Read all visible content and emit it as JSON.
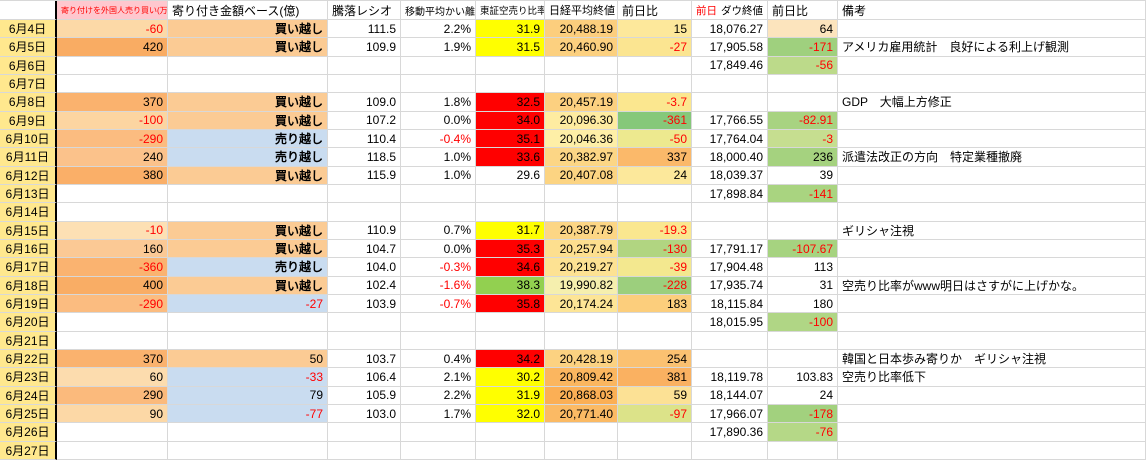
{
  "colors": {
    "gridline": "#d8d8d8",
    "date_column_bg": "#ffe88e",
    "negative_text": "#ff0000",
    "header_b_bg": "#ffc7ce",
    "header_red_text": "#ff0000",
    "buy_fill": "#fbcb94",
    "sell_fill": "#c9dcf0",
    "yellow_flag": "#ffff00",
    "red_flag": "#ff0000",
    "green_flag": "#92d050"
  },
  "headers": {
    "a": "",
    "b": "寄り付けを外国人売り買い(万株)",
    "c": "寄り付き金額ベース(億)",
    "d": "騰落レシオ",
    "e": "移動平均かい離",
    "f": "東証空売り比率",
    "g": "日経平均終値",
    "h": "前日比",
    "i_prefix": "前日",
    "i": "ダウ終値",
    "j": "前日比",
    "k": "備考"
  },
  "rows": [
    {
      "date": "6月4日",
      "b": {
        "t": "-60",
        "bg": "#FCD9A7"
      },
      "c": {
        "t": "買い越し",
        "bg": "#FBCB94",
        "bold": true
      },
      "d": {
        "t": "111.5"
      },
      "e": {
        "t": "2.2%"
      },
      "f": {
        "t": "31.9",
        "bg": "#FFFF00"
      },
      "g": {
        "t": "20,488.19",
        "bg": "#FCCE7D"
      },
      "h": {
        "t": "15",
        "bg": "#FDE89B"
      },
      "i": {
        "t": "18,076.27"
      },
      "j": {
        "t": "64",
        "bg": "#FCE4BD"
      },
      "k": {
        "t": ""
      }
    },
    {
      "date": "6月5日",
      "b": {
        "t": "420",
        "bg": "#F9AC63"
      },
      "c": {
        "t": "買い越し",
        "bg": "#FBCB94",
        "bold": true
      },
      "d": {
        "t": "109.9"
      },
      "e": {
        "t": "1.9%"
      },
      "f": {
        "t": "31.5",
        "bg": "#FFFF00"
      },
      "g": {
        "t": "20,460.90",
        "bg": "#FCD07F"
      },
      "h": {
        "t": "-27",
        "bg": "#FBE591"
      },
      "i": {
        "t": "17,905.58"
      },
      "j": {
        "t": "-171",
        "bg": "#9FD07E"
      },
      "k": {
        "t": "アメリカ雇用統計　良好による利上げ観測"
      }
    },
    {
      "date": "6月6日",
      "i": {
        "t": "17,849.46"
      },
      "j": {
        "t": "-56",
        "bg": "#BCDA8A"
      }
    },
    {
      "date": "6月7日"
    },
    {
      "date": "6月8日",
      "b": {
        "t": "370",
        "bg": "#FAB26E"
      },
      "c": {
        "t": "買い越し",
        "bg": "#FBCB94",
        "bold": true
      },
      "d": {
        "t": "109.0"
      },
      "e": {
        "t": "1.8%"
      },
      "f": {
        "t": "32.5",
        "bg": "#FF0000"
      },
      "g": {
        "t": "20,457.19",
        "bg": "#FCD080"
      },
      "h": {
        "t": "-3.7",
        "bg": "#FBE78F"
      },
      "k": {
        "t": "GDP　大幅上方修正"
      }
    },
    {
      "date": "6月9日",
      "b": {
        "t": "-100",
        "bg": "#FCD5A1"
      },
      "c": {
        "t": "買い越し",
        "bg": "#FBCB94",
        "bold": true
      },
      "d": {
        "t": "107.2"
      },
      "e": {
        "t": "0.0%"
      },
      "f": {
        "t": "34.0",
        "bg": "#FF0000"
      },
      "g": {
        "t": "20,096.30",
        "bg": "#FEECA1"
      },
      "h": {
        "t": "-361",
        "bg": "#86C87A"
      },
      "i": {
        "t": "17,766.55"
      },
      "j": {
        "t": "-82.91",
        "bg": "#A8D381"
      }
    },
    {
      "date": "6月10日",
      "b": {
        "t": "-290",
        "bg": "#FBBC80"
      },
      "c": {
        "t": "売り越し",
        "bg": "#C9DCF0",
        "bold": true
      },
      "d": {
        "t": "110.4"
      },
      "e": {
        "t": "-0.4%"
      },
      "f": {
        "t": "35.1",
        "bg": "#FF0000"
      },
      "g": {
        "t": "20,046.36",
        "bg": "#FEEFA7"
      },
      "h": {
        "t": "-50",
        "bg": "#EDE98F"
      },
      "i": {
        "t": "17,764.04"
      },
      "j": {
        "t": "-3",
        "bg": "#C6DE90"
      }
    },
    {
      "date": "6月11日",
      "b": {
        "t": "240",
        "bg": "#FBC28B"
      },
      "c": {
        "t": "売り越し",
        "bg": "#C9DCF0",
        "bold": true
      },
      "d": {
        "t": "118.5"
      },
      "e": {
        "t": "1.0%"
      },
      "f": {
        "t": "33.6",
        "bg": "#FF0000"
      },
      "g": {
        "t": "20,382.97",
        "bg": "#FCD685"
      },
      "h": {
        "t": "337",
        "bg": "#FBB96A"
      },
      "i": {
        "t": "18,000.40"
      },
      "j": {
        "t": "236",
        "bg": "#A5D27F"
      },
      "k": {
        "t": "派遣法改正の方向　特定業種撤廃"
      }
    },
    {
      "date": "6月12日",
      "b": {
        "t": "380",
        "bg": "#FAAF68"
      },
      "c": {
        "t": "買い越し",
        "bg": "#FBCB94",
        "bold": true
      },
      "d": {
        "t": "115.9"
      },
      "e": {
        "t": "1.0%"
      },
      "f": {
        "t": "29.6"
      },
      "g": {
        "t": "20,407.08",
        "bg": "#FCD482"
      },
      "h": {
        "t": "24",
        "bg": "#FCE89B"
      },
      "i": {
        "t": "18,039.37"
      },
      "j": {
        "t": "39"
      }
    },
    {
      "date": "6月13日",
      "i": {
        "t": "17,898.84"
      },
      "j": {
        "t": "-141",
        "bg": "#A9D480"
      }
    },
    {
      "date": "6月14日"
    },
    {
      "date": "6月15日",
      "b": {
        "t": "-10",
        "bg": "#FDE0B4"
      },
      "c": {
        "t": "買い越し",
        "bg": "#FBCB94",
        "bold": true
      },
      "d": {
        "t": "110.9"
      },
      "e": {
        "t": "0.7%"
      },
      "f": {
        "t": "31.7",
        "bg": "#FFFF00"
      },
      "g": {
        "t": "20,387.79",
        "bg": "#FCD685"
      },
      "h": {
        "t": "-19.3",
        "bg": "#FAE78F"
      },
      "k": {
        "t": "ギリシャ注視"
      }
    },
    {
      "date": "6月16日",
      "b": {
        "t": "160",
        "bg": "#FBC995"
      },
      "c": {
        "t": "買い越し",
        "bg": "#FBCB94",
        "bold": true
      },
      "d": {
        "t": "104.7"
      },
      "e": {
        "t": "0.0%"
      },
      "f": {
        "t": "35.3",
        "bg": "#FF0000"
      },
      "g": {
        "t": "20,257.94",
        "bg": "#FDDF8F"
      },
      "h": {
        "t": "-130",
        "bg": "#B1D581"
      },
      "i": {
        "t": "17,791.17"
      },
      "j": {
        "t": "-107.67",
        "bg": "#A6D380"
      }
    },
    {
      "date": "6月17日",
      "b": {
        "t": "-360",
        "bg": "#FAB370"
      },
      "c": {
        "t": "売り越し",
        "bg": "#C9DCF0",
        "bold": true
      },
      "d": {
        "t": "104.0"
      },
      "e": {
        "t": "-0.3%"
      },
      "f": {
        "t": "34.6",
        "bg": "#FF0000"
      },
      "g": {
        "t": "20,219.27",
        "bg": "#FDE293"
      },
      "h": {
        "t": "-39",
        "bg": "#F3E88F"
      },
      "i": {
        "t": "17,904.48"
      },
      "j": {
        "t": "113"
      }
    },
    {
      "date": "6月18日",
      "b": {
        "t": "400",
        "bg": "#F9AD65"
      },
      "c": {
        "t": "買い越し",
        "bg": "#FBCB94",
        "bold": true
      },
      "d": {
        "t": "102.4"
      },
      "e": {
        "t": "-1.6%"
      },
      "f": {
        "t": "38.3",
        "bg": "#92D050"
      },
      "g": {
        "t": "19,990.82",
        "bg": "#F5EFAE"
      },
      "h": {
        "t": "-228",
        "bg": "#9CCF7D"
      },
      "i": {
        "t": "17,935.74"
      },
      "j": {
        "t": "31"
      },
      "k": {
        "t": "空売り比率がwww明日はさすがに上げかな。"
      }
    },
    {
      "date": "6月19日",
      "b": {
        "t": "-290",
        "bg": "#FBBC80"
      },
      "c": {
        "t": "-27",
        "bg": "#C9DCF0"
      },
      "d": {
        "t": "103.9"
      },
      "e": {
        "t": "-0.7%"
      },
      "f": {
        "t": "35.8",
        "bg": "#FF0000"
      },
      "g": {
        "t": "20,174.24",
        "bg": "#FDE596"
      },
      "h": {
        "t": "183",
        "bg": "#FCCE7C"
      },
      "i": {
        "t": "18,115.84"
      },
      "j": {
        "t": "180"
      }
    },
    {
      "date": "6月20日",
      "i": {
        "t": "18,015.95"
      },
      "j": {
        "t": "-100",
        "bg": "#B0D685"
      }
    },
    {
      "date": "6月21日"
    },
    {
      "date": "6月22日",
      "b": {
        "t": "370",
        "bg": "#FAB26E"
      },
      "c": {
        "t": "50",
        "bg": "#FBCB94"
      },
      "d": {
        "t": "103.7"
      },
      "e": {
        "t": "0.4%"
      },
      "f": {
        "t": "34.2",
        "bg": "#FF0000"
      },
      "g": {
        "t": "20,428.19",
        "bg": "#FCD281"
      },
      "h": {
        "t": "254",
        "bg": "#FBC171"
      },
      "k": {
        "t": "韓国と日本歩み寄りか　ギリシャ注視"
      }
    },
    {
      "date": "6月23日",
      "b": {
        "t": "60",
        "bg": "#FCDCAE"
      },
      "c": {
        "t": "-33",
        "bg": "#C9DCF0"
      },
      "d": {
        "t": "106.4"
      },
      "e": {
        "t": "2.1%"
      },
      "f": {
        "t": "30.2",
        "bg": "#FFFF00"
      },
      "g": {
        "t": "20,809.42",
        "bg": "#FBB65F"
      },
      "h": {
        "t": "381",
        "bg": "#FAB161"
      },
      "i": {
        "t": "18,119.78"
      },
      "j": {
        "t": "103.83"
      },
      "k": {
        "t": "空売り比率低下"
      }
    },
    {
      "date": "6月24日",
      "b": {
        "t": "290",
        "bg": "#FBBA7C"
      },
      "c": {
        "t": "79",
        "bg": "#C9DCF0"
      },
      "d": {
        "t": "105.9"
      },
      "e": {
        "t": "2.2%"
      },
      "f": {
        "t": "31.9",
        "bg": "#FFFF00"
      },
      "g": {
        "t": "20,868.03",
        "bg": "#FBAF55"
      },
      "h": {
        "t": "59",
        "bg": "#FCE195"
      },
      "i": {
        "t": "18,144.07"
      },
      "j": {
        "t": "24"
      }
    },
    {
      "date": "6月25日",
      "b": {
        "t": "90",
        "bg": "#FCD8A6"
      },
      "c": {
        "t": "-77",
        "bg": "#C9DCF0"
      },
      "d": {
        "t": "103.0"
      },
      "e": {
        "t": "1.7%"
      },
      "f": {
        "t": "32.0",
        "bg": "#FFFF00"
      },
      "g": {
        "t": "20,771.40",
        "bg": "#FBBA64"
      },
      "h": {
        "t": "-97",
        "bg": "#DCE389"
      },
      "i": {
        "t": "17,966.07"
      },
      "j": {
        "t": "-178",
        "bg": "#A2D17E"
      }
    },
    {
      "date": "6月26日",
      "i": {
        "t": "17,890.36"
      },
      "j": {
        "t": "-76",
        "bg": "#B5D887"
      }
    },
    {
      "date": "6月27日"
    }
  ]
}
